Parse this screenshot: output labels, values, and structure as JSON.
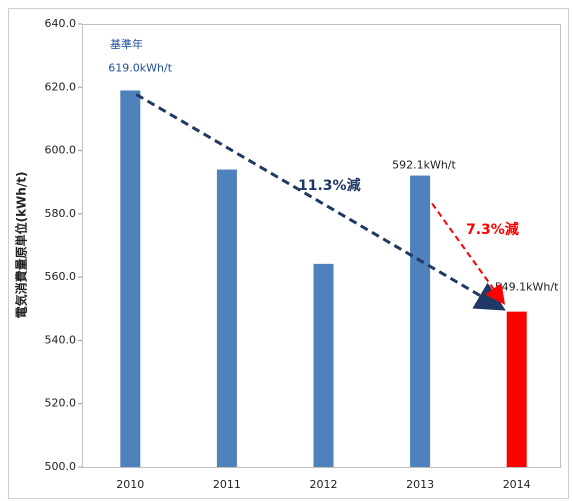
{
  "chart_data": {
    "type": "bar",
    "y_label": "電気消費量原単位(kWh/t)",
    "categories": [
      "2010",
      "2011",
      "2012",
      "2013",
      "2014"
    ],
    "values": [
      619.0,
      594.0,
      564.2,
      592.1,
      549.1
    ],
    "value_labels": [
      "619.0kWh/t",
      null,
      null,
      "592.1kWh/t",
      "549.1kWh/t"
    ],
    "colors": [
      "#4f81bd",
      "#4f81bd",
      "#4f81bd",
      "#4f81bd",
      "#ff0000"
    ],
    "annotations": [
      "基準年",
      "11.3%減",
      "7.3%減"
    ],
    "ylim": [
      500,
      640
    ],
    "yticks": [
      {
        "value": 500,
        "label": "500.0"
      },
      {
        "value": 520,
        "label": "520.0"
      },
      {
        "value": 540,
        "label": "540.0"
      },
      {
        "value": 560,
        "label": "560.0"
      },
      {
        "value": 580,
        "label": "580.0"
      },
      {
        "value": 600,
        "label": "600.0"
      },
      {
        "value": 620,
        "label": "620.0"
      },
      {
        "value": 640,
        "label": "640.0"
      }
    ],
    "grid": false
  }
}
